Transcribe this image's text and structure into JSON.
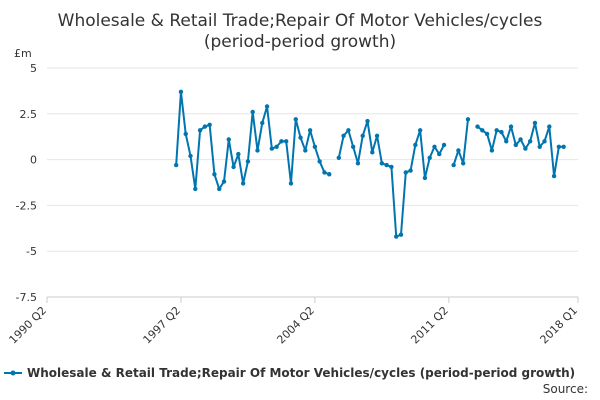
{
  "chart_data": {
    "type": "line",
    "title_line1": "Wholesale & Retail Trade;Repair Of Motor Vehicles/cycles",
    "title_line2": "(period-period growth)",
    "ylabel": "£m",
    "ylim": [
      -7.5,
      5
    ],
    "yticks": [
      5,
      2.5,
      0,
      -2.5,
      -5,
      -7.5
    ],
    "ytick_labels": [
      "5",
      "2.5",
      "0",
      "-2.5",
      "-5",
      "-7.5"
    ],
    "xlim": [
      "1990 Q2",
      "2018 Q1"
    ],
    "xticks": [
      "1990 Q2",
      "1997 Q2",
      "2004 Q2",
      "2011 Q2",
      "2018 Q1"
    ],
    "grid": true,
    "legend_position": "bottom",
    "source_label": "Source:",
    "color": "#0075B0",
    "series": [
      {
        "name": "Wholesale & Retail Trade;Repair Of Motor Vehicles/cycles (period-period growth)",
        "points": [
          [
            "1997 Q1",
            -0.3
          ],
          [
            "1997 Q2",
            3.7
          ],
          [
            "1997 Q3",
            1.4
          ],
          [
            "1997 Q4",
            0.2
          ],
          [
            "1998 Q1",
            -1.6
          ],
          [
            "1998 Q2",
            1.6
          ],
          [
            "1998 Q3",
            1.8
          ],
          [
            "1998 Q4",
            1.9
          ],
          [
            "1999 Q1",
            -0.8
          ],
          [
            "1999 Q2",
            -1.6
          ],
          [
            "1999 Q3",
            -1.2
          ],
          [
            "1999 Q4",
            1.1
          ],
          [
            "2000 Q1",
            -0.4
          ],
          [
            "2000 Q2",
            0.3
          ],
          [
            "2000 Q3",
            -1.3
          ],
          [
            "2000 Q4",
            -0.1
          ],
          [
            "2001 Q1",
            2.6
          ],
          [
            "2001 Q2",
            0.5
          ],
          [
            "2001 Q3",
            2.0
          ],
          [
            "2001 Q4",
            2.9
          ],
          [
            "2002 Q1",
            0.6
          ],
          [
            "2002 Q2",
            0.7
          ],
          [
            "2002 Q3",
            1.0
          ],
          [
            "2002 Q4",
            1.0
          ],
          [
            "2003 Q1",
            -1.3
          ],
          [
            "2003 Q2",
            2.2
          ],
          [
            "2003 Q3",
            1.2
          ],
          [
            "2003 Q4",
            0.5
          ],
          [
            "2004 Q1",
            1.6
          ],
          [
            "2004 Q2",
            0.7
          ],
          [
            "2004 Q3",
            -0.1
          ],
          [
            "2004 Q4",
            -0.7
          ],
          [
            "2005 Q1",
            -0.8
          ],
          [
            "2005 Q2",
            null
          ],
          [
            "2005 Q3",
            0.1
          ],
          [
            "2005 Q4",
            1.3
          ],
          [
            "2006 Q1",
            1.6
          ],
          [
            "2006 Q2",
            0.7
          ],
          [
            "2006 Q3",
            -0.2
          ],
          [
            "2006 Q4",
            1.3
          ],
          [
            "2007 Q1",
            2.1
          ],
          [
            "2007 Q2",
            0.4
          ],
          [
            "2007 Q3",
            1.3
          ],
          [
            "2007 Q4",
            -0.2
          ],
          [
            "2008 Q1",
            -0.3
          ],
          [
            "2008 Q2",
            -0.4
          ],
          [
            "2008 Q3",
            -4.2
          ],
          [
            "2008 Q4",
            -4.1
          ],
          [
            "2009 Q1",
            -0.7
          ],
          [
            "2009 Q2",
            -0.6
          ],
          [
            "2009 Q3",
            0.8
          ],
          [
            "2009 Q4",
            1.6
          ],
          [
            "2010 Q1",
            -1.0
          ],
          [
            "2010 Q2",
            0.1
          ],
          [
            "2010 Q3",
            0.7
          ],
          [
            "2010 Q4",
            0.3
          ],
          [
            "2011 Q1",
            0.8
          ],
          [
            "2011 Q2",
            null
          ],
          [
            "2011 Q3",
            -0.3
          ],
          [
            "2011 Q4",
            0.5
          ],
          [
            "2012 Q1",
            -0.2
          ],
          [
            "2012 Q2",
            2.2
          ],
          [
            "2012 Q3",
            null
          ],
          [
            "2012 Q4",
            1.8
          ],
          [
            "2013 Q1",
            1.6
          ],
          [
            "2013 Q2",
            1.4
          ],
          [
            "2013 Q3",
            0.5
          ],
          [
            "2013 Q4",
            1.6
          ],
          [
            "2014 Q1",
            1.5
          ],
          [
            "2014 Q2",
            1.0
          ],
          [
            "2014 Q3",
            1.8
          ],
          [
            "2014 Q4",
            0.8
          ],
          [
            "2015 Q1",
            1.1
          ],
          [
            "2015 Q2",
            0.6
          ],
          [
            "2015 Q3",
            1.0
          ],
          [
            "2015 Q4",
            2.0
          ],
          [
            "2016 Q1",
            0.7
          ],
          [
            "2016 Q2",
            1.0
          ],
          [
            "2016 Q3",
            1.8
          ],
          [
            "2016 Q4",
            -0.9
          ],
          [
            "2017 Q1",
            0.7
          ],
          [
            "2017 Q2",
            0.7
          ]
        ]
      }
    ]
  }
}
